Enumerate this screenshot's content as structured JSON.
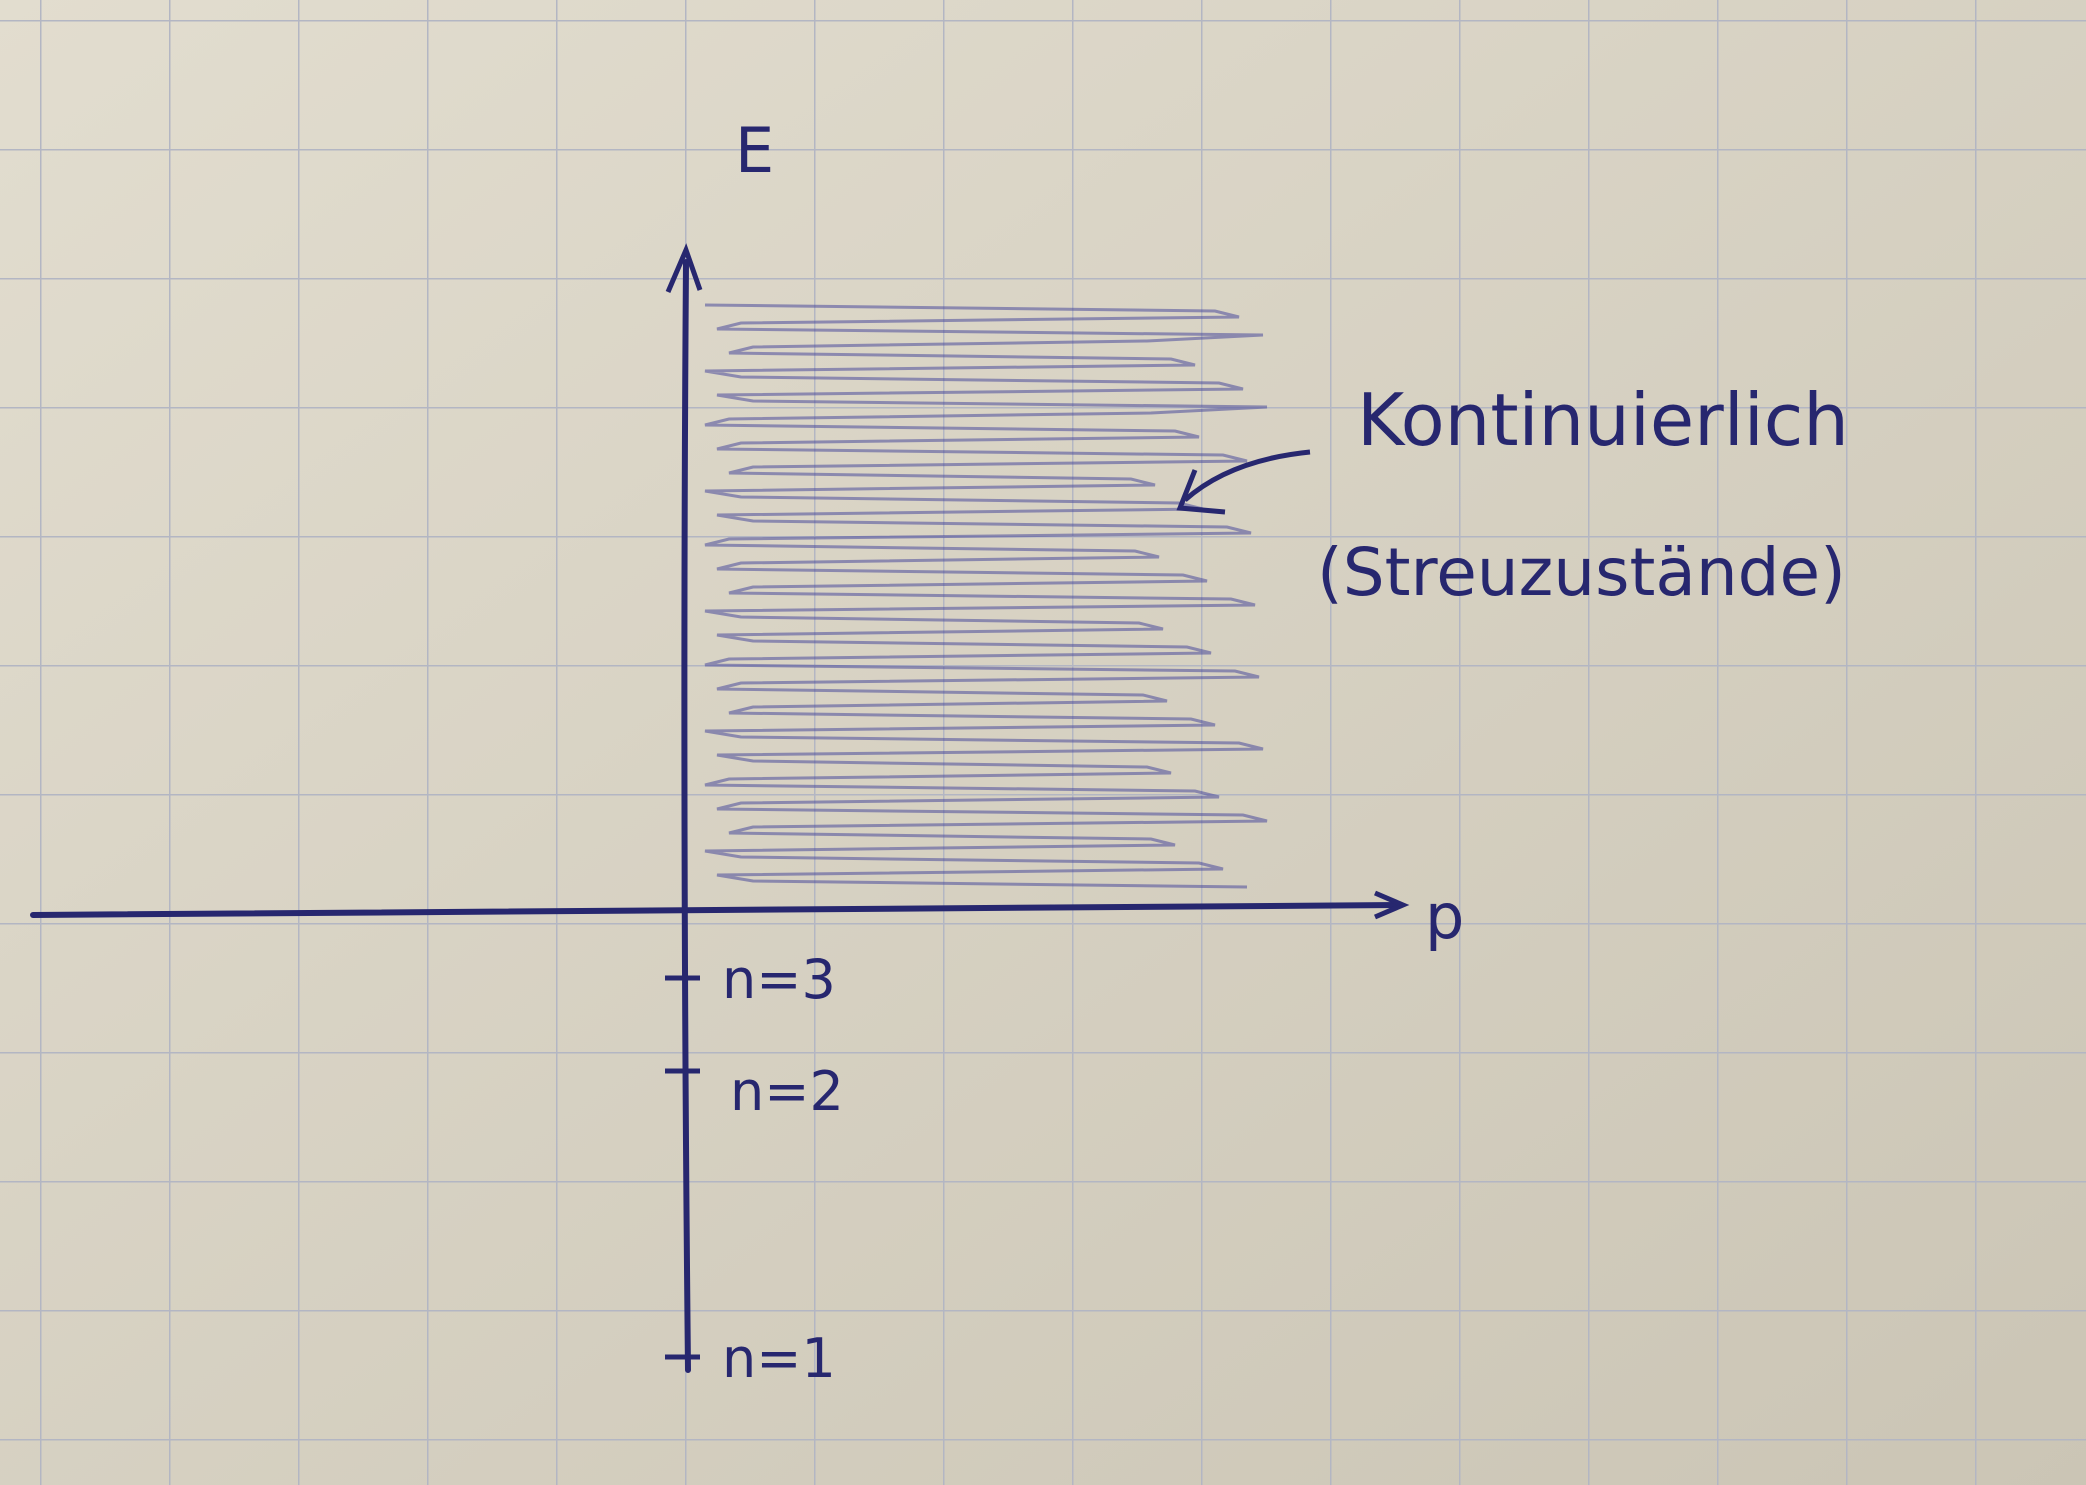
{
  "axes": {
    "y_label": "E",
    "x_label": "p"
  },
  "levels": [
    {
      "label": "n=3"
    },
    {
      "label": "n=2"
    },
    {
      "label": "n=1"
    }
  ],
  "annotation": {
    "line1": "Kontinuierlich",
    "line2": "(Streuzustände)"
  }
}
